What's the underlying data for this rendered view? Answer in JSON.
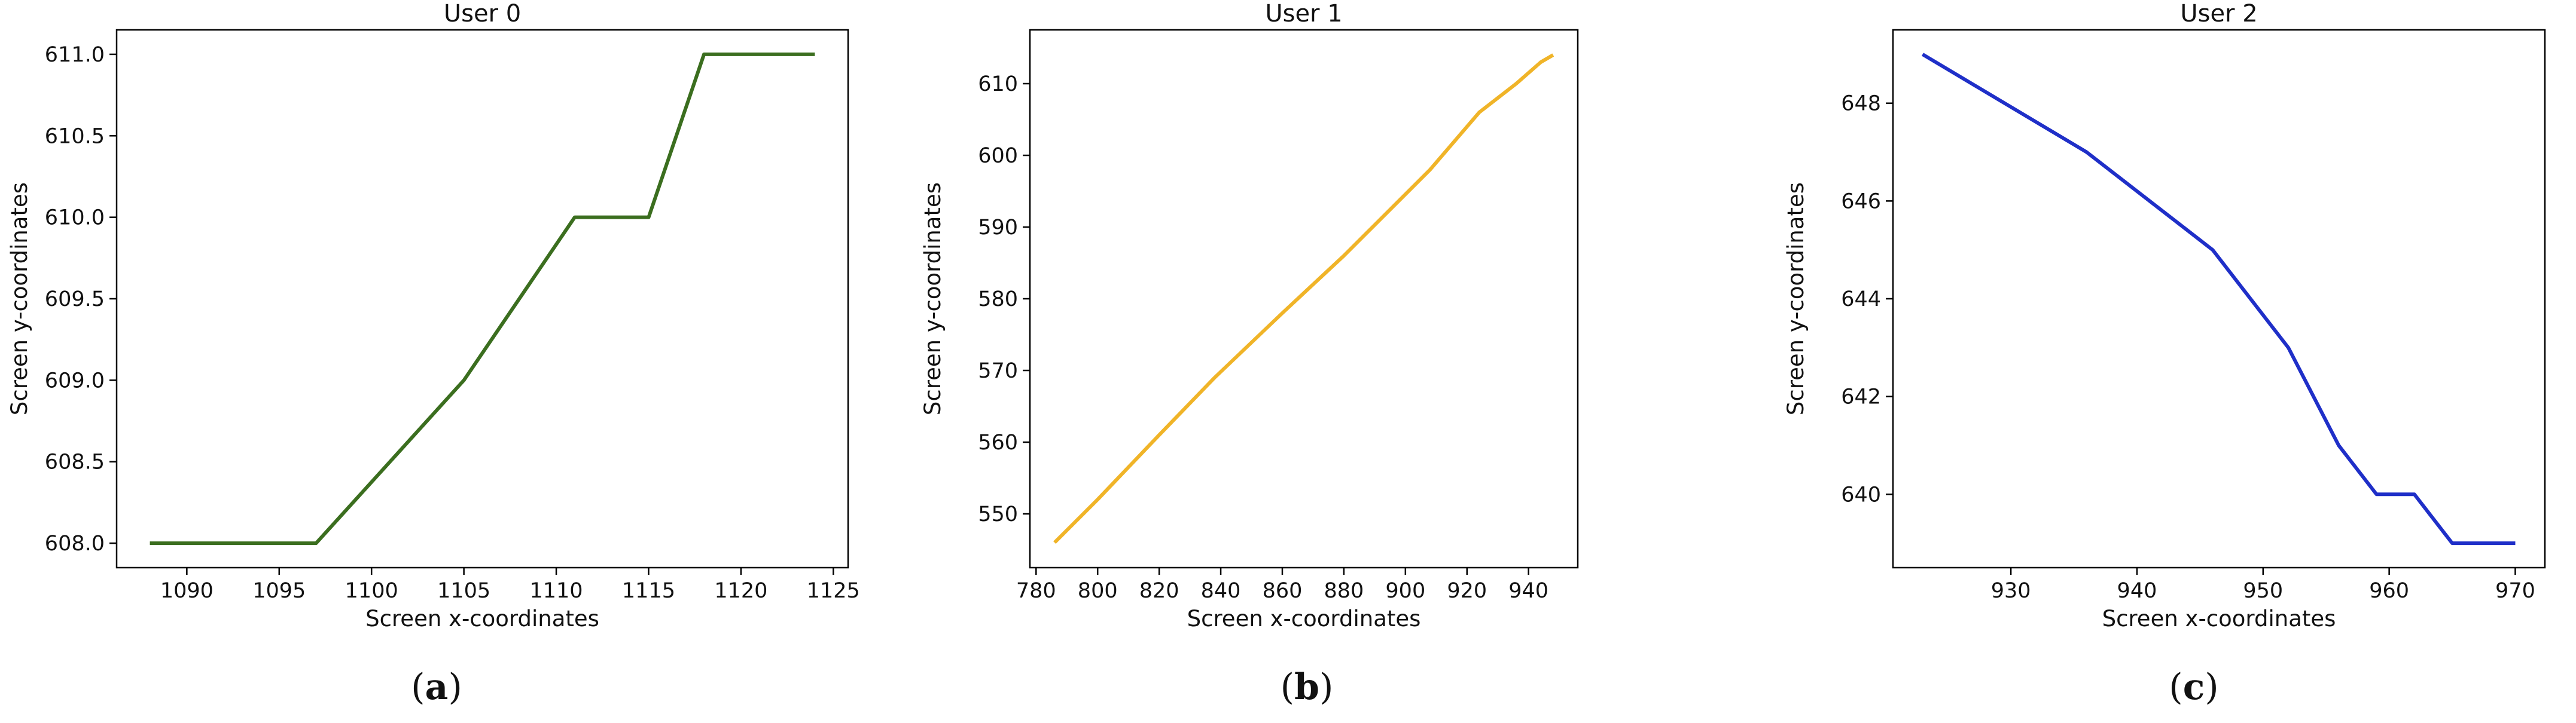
{
  "chart_data": [
    {
      "type": "line",
      "panel_label": {
        "open": "(",
        "letter": "a",
        "close": ")"
      },
      "title": "User 0",
      "xlabel": "Screen x-coordinates",
      "ylabel": "Screen y-coordinates",
      "xlim": [
        1086.2,
        1125.8
      ],
      "ylim": [
        607.85,
        611.15
      ],
      "xticks": [
        1090,
        1095,
        1100,
        1105,
        1110,
        1115,
        1120,
        1125
      ],
      "yticks": [
        608.0,
        608.5,
        609.0,
        609.5,
        610.0,
        610.5,
        611.0
      ],
      "ytick_decimals": 1,
      "grid": false,
      "color": "#3b6e1f",
      "series": [
        {
          "x": [
            1088,
            1097,
            1105,
            1111,
            1115,
            1118,
            1124
          ],
          "y": [
            608,
            608,
            609,
            610,
            610,
            611,
            611
          ]
        }
      ]
    },
    {
      "type": "line",
      "panel_label": {
        "open": "(",
        "letter": "b",
        "close": ")"
      },
      "title": "User 1",
      "xlabel": "Screen x-coordinates",
      "ylabel": "Screen y-coordinates",
      "xlim": [
        778,
        956
      ],
      "ylim": [
        542.5,
        617.5
      ],
      "xticks": [
        780,
        800,
        820,
        840,
        860,
        880,
        900,
        920,
        940
      ],
      "yticks": [
        550,
        560,
        570,
        580,
        590,
        600,
        610
      ],
      "ytick_decimals": 0,
      "grid": false,
      "color": "#f0b428",
      "series": [
        {
          "x": [
            786,
            800,
            820,
            838,
            860,
            880,
            908,
            924,
            936,
            944,
            948
          ],
          "y": [
            546,
            552,
            561,
            569,
            578,
            586,
            598,
            606,
            610,
            613,
            614
          ]
        }
      ]
    },
    {
      "type": "line",
      "panel_label": {
        "open": "(",
        "letter": "c",
        "close": ")"
      },
      "title": "User 2",
      "xlabel": "Screen x-coordinates",
      "ylabel": "Screen y-coordinates",
      "xlim": [
        920.65,
        972.35
      ],
      "ylim": [
        638.5,
        649.5
      ],
      "xticks": [
        930,
        940,
        950,
        960,
        970
      ],
      "yticks": [
        640,
        642,
        644,
        646,
        648
      ],
      "ytick_decimals": 0,
      "grid": false,
      "color": "#1f2fc8",
      "series": [
        {
          "x": [
            923,
            936,
            946,
            952,
            956,
            959,
            962,
            965,
            970
          ],
          "y": [
            649,
            647,
            645,
            643,
            641,
            640,
            640,
            639,
            639
          ]
        }
      ]
    }
  ]
}
